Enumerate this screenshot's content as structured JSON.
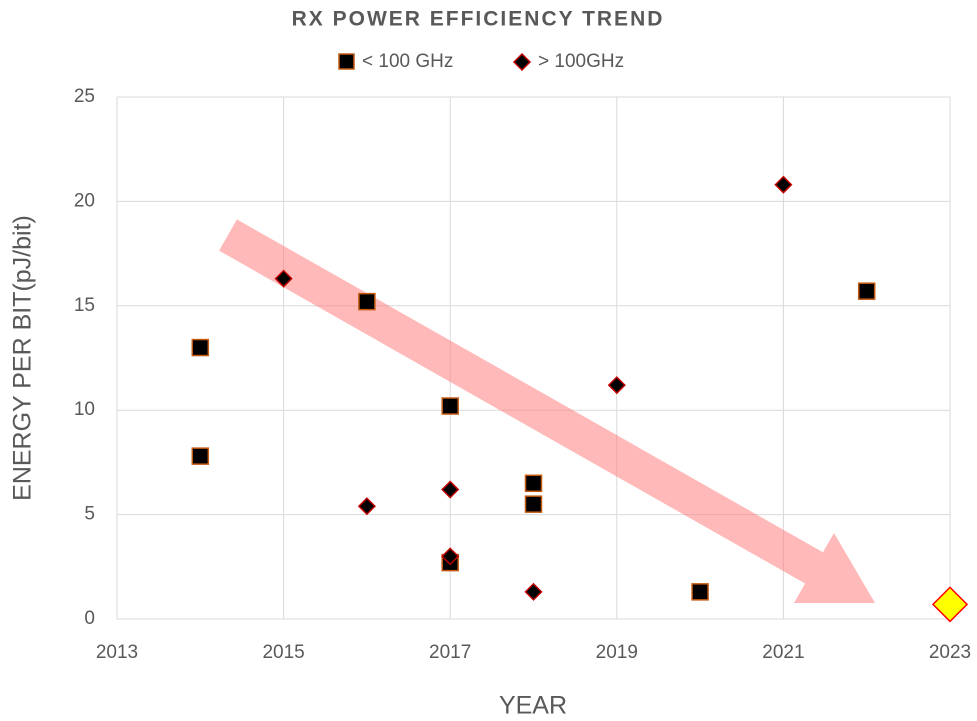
{
  "chart_data": {
    "type": "scatter",
    "title": "RX POWER EFFICIENCY TREND",
    "x_label": "YEAR",
    "y_label": "ENERGY PER BIT(pJ/bit)",
    "xlim": [
      2013,
      2023
    ],
    "xticks": [
      2013,
      2015,
      2017,
      2019,
      2021,
      2023
    ],
    "ylim": [
      0,
      25
    ],
    "yticks": [
      0,
      5,
      10,
      15,
      20,
      25
    ],
    "grid": true,
    "legend": "top",
    "series": [
      {
        "name": "< 100 GHz",
        "marker": "square",
        "color": "#000000",
        "edge_color": "#c55a11",
        "x": [
          2014,
          2014,
          2016,
          2017,
          2017,
          2018,
          2018,
          2020,
          2022
        ],
        "values": [
          13.0,
          7.8,
          15.2,
          10.2,
          2.7,
          6.5,
          5.5,
          1.3,
          15.7
        ]
      },
      {
        "name": "> 100GHz",
        "marker": "diamond",
        "color": "#000000",
        "edge_color": "#c00000",
        "x": [
          2015,
          2016,
          2017,
          2017,
          2018,
          2019,
          2021
        ],
        "values": [
          16.3,
          5.4,
          6.2,
          3.0,
          1.3,
          11.2,
          20.8
        ]
      },
      {
        "marker": "diamond",
        "color": "#ffff00",
        "edge_color": "#ff0000",
        "size": "large",
        "x": [
          2023
        ],
        "values": [
          0.7
        ]
      }
    ]
  }
}
